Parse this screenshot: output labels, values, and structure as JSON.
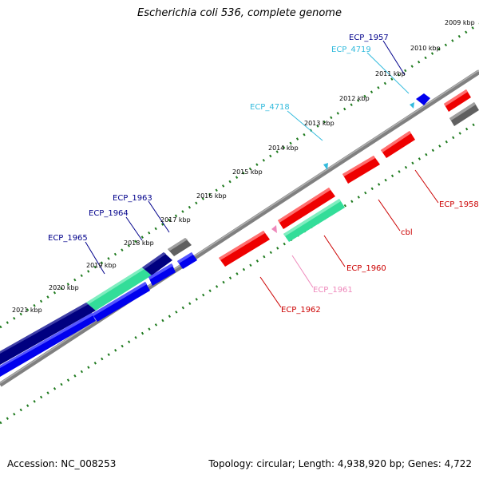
{
  "title": "Escherichia coli 536, complete genome",
  "footer": {
    "accession": "Accession: NC_008253",
    "summary": "Topology: circular; Length: 4,938,920 bp; Genes: 4,722"
  },
  "scale": {
    "labels": [
      "2009 kbp",
      "2010 kbp",
      "2011 kbp",
      "2012 kbp",
      "2013 kbp",
      "2014 kbp",
      "2015 kbp",
      "2016 kbp",
      "2017 kbp",
      "2018 kbp",
      "2019 kbp",
      "2020 kbp",
      "2021 kbp"
    ]
  },
  "colors": {
    "backbone": "#808080",
    "tick": "#1e7a1e",
    "label_navy": "#00008b",
    "label_cyan": "#33bbdd",
    "label_red": "#cc0000",
    "label_pink": "#ee88bb"
  },
  "gene_labels": [
    {
      "text": "ECP_1957",
      "color": "#00008b"
    },
    {
      "text": "ECP_4719",
      "color": "#33bbdd"
    },
    {
      "text": "ECP_4718",
      "color": "#33bbdd"
    },
    {
      "text": "ECP_1963",
      "color": "#00008b"
    },
    {
      "text": "ECP_1964",
      "color": "#00008b"
    },
    {
      "text": "ECP_1965",
      "color": "#00008b"
    },
    {
      "text": "ECP_1958",
      "color": "#cc0000"
    },
    {
      "text": "cbl",
      "color": "#cc0000"
    },
    {
      "text": "ECP_1960",
      "color": "#cc0000"
    },
    {
      "text": "ECP_1961",
      "color": "#ee88bb"
    },
    {
      "text": "ECP_1962",
      "color": "#cc0000"
    }
  ]
}
